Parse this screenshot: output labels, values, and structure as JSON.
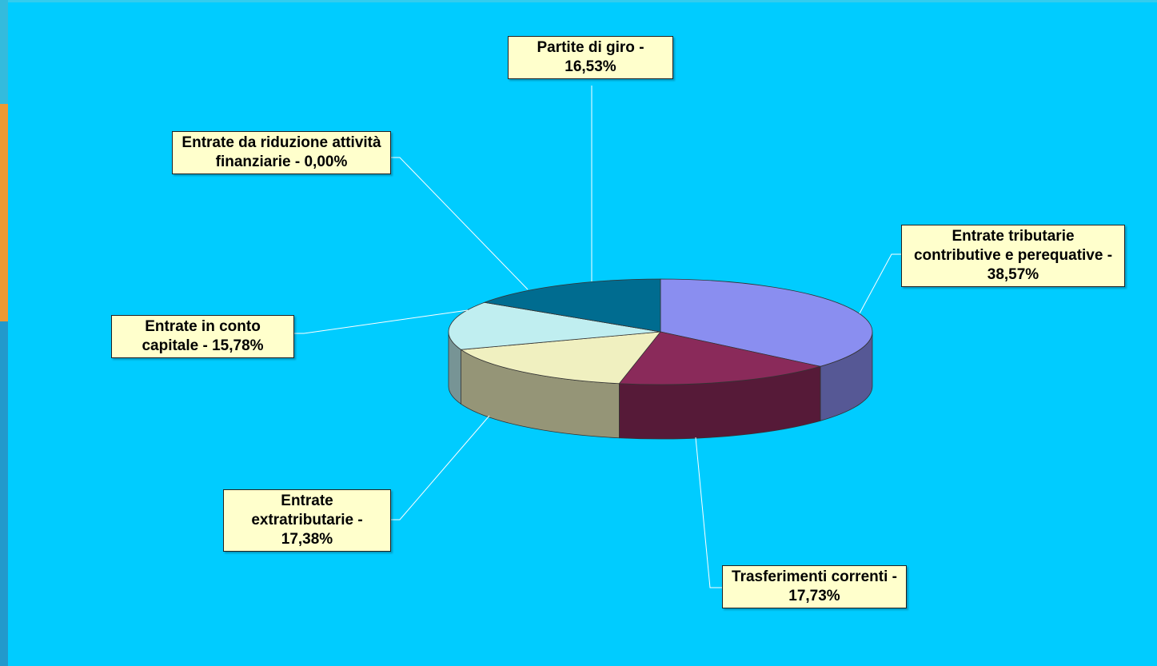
{
  "chart_data": {
    "type": "pie",
    "style": "3d",
    "value_labels": [
      "Entrate tributarie contributive e perequative - 38,57%",
      "Trasferimenti correnti - 17,73%",
      "Entrate extratributarie - 17,38%",
      "Entrate in conto capitale - 15,78%",
      "Entrate da riduzione attività finanziarie - 0,00%",
      "Partite di giro - 16,53%"
    ],
    "values": [
      38.57,
      17.73,
      17.38,
      15.78,
      0.0,
      16.53
    ],
    "colors": [
      "#8a8ef0",
      "#8a2a5a",
      "#f0f0c0",
      "#c0eef0",
      "#b0d0e0",
      "#006c90"
    ]
  }
}
